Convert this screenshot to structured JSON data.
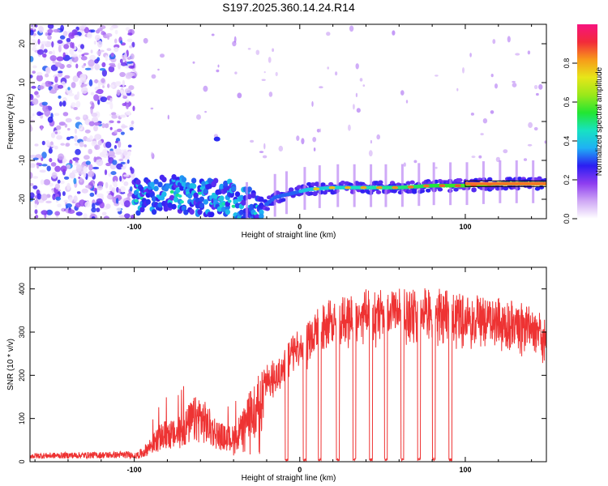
{
  "title": "S197.2025.360.14.24.R14",
  "chart_data": [
    {
      "type": "heatmap",
      "name": "spectrogram",
      "xlabel": "Height of straight line (km)",
      "ylabel": "Frequency (Hz)",
      "xlim": [
        -163,
        149
      ],
      "ylim": [
        -25,
        25
      ],
      "x_ticks": [
        -100,
        0,
        100
      ],
      "x_tick_labels": [
        "-100",
        "0",
        "100"
      ],
      "y_ticks": [
        -20,
        -10,
        0,
        10,
        20
      ],
      "y_tick_labels": [
        "-20",
        "-10",
        "0",
        "10",
        "20"
      ],
      "carrier_frequency_hz": -16,
      "carrier_track": {
        "x": [
          -100,
          -80,
          -60,
          -40,
          -25,
          -15,
          -5,
          5,
          20,
          40,
          60,
          80,
          100,
          120,
          149
        ],
        "y": [
          -19.5,
          -18.5,
          -19.5,
          -20,
          -23,
          -19.5,
          -18.5,
          -17.5,
          -17,
          -17,
          -17,
          -16.5,
          -16.5,
          -16,
          -16
        ]
      },
      "colorbar": {
        "label": "Normalized spectral amplitude",
        "range": [
          0.0,
          1.0
        ],
        "ticks": [
          0.0,
          0.2,
          0.4,
          0.6,
          0.8
        ],
        "tick_labels": [
          "0.0",
          "0.2",
          "0.4",
          "0.6",
          "0.8"
        ],
        "colors": [
          "#ffffff",
          "#cfa8f5",
          "#8e3df0",
          "#2b1ef2",
          "#1fb1f5",
          "#17e2c2",
          "#22e632",
          "#9ae81a",
          "#e7e619",
          "#f79a1a",
          "#f22a3a",
          "#f7137f"
        ]
      }
    },
    {
      "type": "line",
      "name": "snr",
      "xlabel": "Height of straight line (km)",
      "ylabel": "SNR (10 * v/v)",
      "xlim": [
        -163,
        149
      ],
      "ylim": [
        0,
        450
      ],
      "x_ticks": [
        -100,
        0,
        100
      ],
      "x_tick_labels": [
        "-100",
        "0",
        "100"
      ],
      "y_ticks": [
        0,
        100,
        200,
        300,
        400
      ],
      "y_tick_labels": [
        "0",
        "100",
        "200",
        "300",
        "400"
      ],
      "color": "#ee3333",
      "envelope": {
        "x": [
          -163,
          -100,
          -95,
          -90,
          -85,
          -80,
          -75,
          -70,
          -65,
          -60,
          -55,
          -50,
          -45,
          -40,
          -35,
          -30,
          -25,
          -20,
          -15,
          -10,
          -5,
          0,
          5,
          10,
          15,
          20,
          30,
          40,
          50,
          60,
          70,
          80,
          90,
          100,
          110,
          120,
          130,
          140,
          149
        ],
        "y": [
          15,
          18,
          30,
          55,
          80,
          95,
          90,
          110,
          140,
          150,
          120,
          95,
          80,
          80,
          110,
          160,
          200,
          215,
          230,
          255,
          280,
          295,
          320,
          340,
          355,
          365,
          375,
          385,
          385,
          385,
          385,
          390,
          380,
          375,
          370,
          365,
          360,
          345,
          320
        ]
      },
      "dropouts_x": [
        -8,
        3,
        12,
        23,
        33,
        43,
        52,
        62,
        72,
        81,
        91
      ],
      "annotations": []
    }
  ]
}
